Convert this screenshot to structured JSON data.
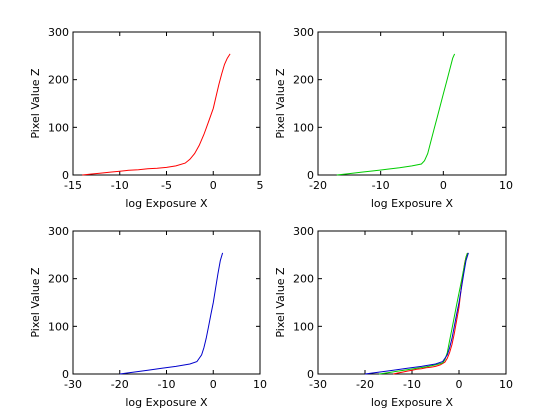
{
  "chart_data": [
    {
      "type": "line",
      "xlabel": "log Exposure X",
      "ylabel": "Pixel Value Z",
      "xlim": [
        -15,
        5
      ],
      "ylim": [
        0,
        300
      ],
      "xticks": [
        -15,
        -10,
        -5,
        0,
        5
      ],
      "yticks": [
        0,
        100,
        200,
        300
      ],
      "grid": false,
      "series": [
        {
          "color": "#ff0000",
          "x": [
            -14,
            -13,
            -12,
            -11,
            -10,
            -9,
            -8,
            -7,
            -6,
            -5,
            -4,
            -3,
            -2.5,
            -2,
            -1.5,
            -1,
            -0.5,
            0,
            0.3,
            0.6,
            0.9,
            1.2,
            1.5,
            1.8
          ],
          "y": [
            0,
            2,
            4,
            6,
            8,
            10,
            11,
            13,
            14,
            16,
            19,
            25,
            33,
            45,
            62,
            85,
            112,
            140,
            165,
            190,
            212,
            232,
            245,
            254
          ]
        }
      ]
    },
    {
      "type": "line",
      "xlabel": "log Exposure X",
      "ylabel": "Pixel Value Z",
      "xlim": [
        -20,
        10
      ],
      "ylim": [
        0,
        300
      ],
      "xticks": [
        -20,
        -10,
        0,
        10
      ],
      "yticks": [
        0,
        100,
        200,
        300
      ],
      "grid": false,
      "series": [
        {
          "color": "#00cc00",
          "x": [
            -17,
            -15,
            -13,
            -11,
            -9,
            -7,
            -5,
            -3.5,
            -3,
            -2.5,
            -2,
            -1.5,
            -1,
            -0.5,
            0,
            0.5,
            1,
            1.5,
            1.8
          ],
          "y": [
            0,
            3,
            6,
            9,
            12,
            15,
            19,
            23,
            30,
            45,
            70,
            95,
            120,
            145,
            170,
            195,
            220,
            245,
            254
          ]
        }
      ]
    },
    {
      "type": "line",
      "xlabel": "log Exposure X",
      "ylabel": "Pixel Value Z",
      "xlim": [
        -30,
        10
      ],
      "ylim": [
        0,
        300
      ],
      "xticks": [
        -30,
        -20,
        -10,
        0,
        10
      ],
      "yticks": [
        0,
        100,
        200,
        300
      ],
      "grid": false,
      "series": [
        {
          "color": "#0000cc",
          "x": [
            -20,
            -17,
            -14,
            -11,
            -8,
            -5,
            -3.5,
            -2.5,
            -2,
            -1.5,
            -1,
            -0.5,
            0,
            0.5,
            1,
            1.5,
            2
          ],
          "y": [
            0,
            4,
            8,
            12,
            16,
            21,
            26,
            40,
            55,
            75,
            100,
            125,
            150,
            180,
            210,
            238,
            254
          ]
        }
      ]
    },
    {
      "type": "line",
      "xlabel": "log Exposure X",
      "ylabel": "Pixel Value Z",
      "xlim": [
        -30,
        10
      ],
      "ylim": [
        0,
        300
      ],
      "xticks": [
        -30,
        -20,
        -10,
        0,
        10
      ],
      "yticks": [
        0,
        100,
        200,
        300
      ],
      "grid": false,
      "series": [
        {
          "color": "#ff0000",
          "x": [
            -14,
            -13,
            -12,
            -11,
            -10,
            -9,
            -8,
            -7,
            -6,
            -5,
            -4,
            -3,
            -2.5,
            -2,
            -1.5,
            -1,
            -0.5,
            0,
            0.3,
            0.6,
            0.9,
            1.2,
            1.5,
            1.8
          ],
          "y": [
            0,
            2,
            4,
            6,
            8,
            10,
            11,
            13,
            14,
            16,
            19,
            25,
            33,
            45,
            62,
            85,
            112,
            140,
            165,
            190,
            212,
            232,
            245,
            254
          ]
        },
        {
          "color": "#00cc00",
          "x": [
            -17,
            -15,
            -13,
            -11,
            -9,
            -7,
            -5,
            -3.5,
            -3,
            -2.5,
            -2,
            -1.5,
            -1,
            -0.5,
            0,
            0.5,
            1,
            1.5,
            1.8
          ],
          "y": [
            0,
            3,
            6,
            9,
            12,
            15,
            19,
            23,
            30,
            45,
            70,
            95,
            120,
            145,
            170,
            195,
            220,
            245,
            254
          ]
        },
        {
          "color": "#0000cc",
          "x": [
            -20,
            -17,
            -14,
            -11,
            -8,
            -5,
            -3.5,
            -2.5,
            -2,
            -1.5,
            -1,
            -0.5,
            0,
            0.5,
            1,
            1.5,
            2
          ],
          "y": [
            0,
            4,
            8,
            12,
            16,
            21,
            26,
            40,
            55,
            75,
            100,
            125,
            150,
            180,
            210,
            238,
            254
          ]
        }
      ]
    }
  ]
}
